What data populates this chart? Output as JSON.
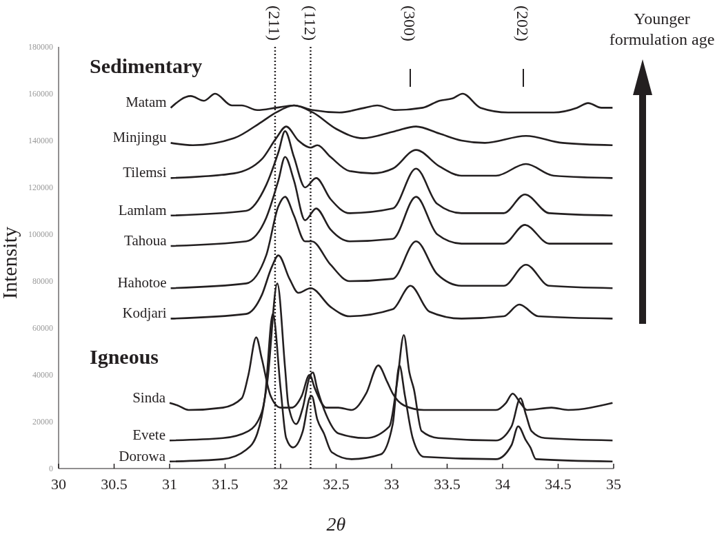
{
  "chart_data": {
    "type": "line",
    "xlabel": "2θ",
    "ylabel": "Intensity",
    "xlim": [
      30,
      35
    ],
    "xticks": [
      30,
      30.5,
      31,
      31.5,
      32,
      32.5,
      33,
      33.5,
      34,
      34.5,
      35
    ],
    "ylim": [
      0,
      180000
    ],
    "yticks": [
      0,
      20000,
      40000,
      60000,
      80000,
      100000,
      120000,
      140000,
      160000,
      180000
    ],
    "grid": false,
    "legend": false,
    "marker": "none",
    "line_style": "solid",
    "ref_lines": [
      {
        "axis": "x",
        "value": 31.95,
        "line_style": "dotted",
        "color": "#231f20"
      },
      {
        "axis": "x",
        "value": 32.27,
        "line_style": "dotted",
        "color": "#231f20"
      }
    ],
    "annotations": [
      "Sedimentary",
      "Igneous",
      "Younger formulation age",
      "(211)",
      "(112)",
      "(300)",
      "(202)"
    ],
    "series": [
      {
        "name": "Matam",
        "color": "#231f20",
        "x": [
          31.01,
          31.19,
          31.31,
          31.41,
          31.56,
          31.65,
          31.79,
          31.96,
          32.12,
          32.29,
          32.53,
          32.76,
          32.87,
          33.03,
          33.28,
          33.43,
          33.55,
          33.64,
          33.8,
          34.05,
          34.46,
          34.67,
          34.77,
          34.89,
          34.99
        ],
        "values": [
          154000,
          159000,
          157000,
          160000,
          155000,
          155000,
          153000,
          154000,
          155000,
          153000,
          152000,
          154000,
          155000,
          153000,
          154000,
          157000,
          158000,
          160000,
          154000,
          152000,
          152000,
          154000,
          156000,
          154000,
          154000
        ]
      },
      {
        "name": "Minjingu",
        "color": "#231f20",
        "x": [
          31.01,
          31.21,
          31.58,
          31.83,
          31.96,
          32.12,
          32.29,
          32.5,
          32.74,
          33.03,
          33.22,
          33.43,
          33.63,
          33.84,
          34.21,
          34.54,
          34.99
        ],
        "values": [
          139000,
          138000,
          141000,
          148000,
          152000,
          155000,
          152000,
          145000,
          141000,
          144000,
          146000,
          143000,
          140000,
          139000,
          142000,
          139000,
          138000
        ]
      },
      {
        "name": "Tilemsi",
        "color": "#231f20",
        "x": [
          31.01,
          31.58,
          31.83,
          31.96,
          32.05,
          32.16,
          32.27,
          32.33,
          32.45,
          32.62,
          32.83,
          33.01,
          33.22,
          33.43,
          33.63,
          33.94,
          34.21,
          34.46,
          34.99
        ],
        "values": [
          124000,
          126000,
          132000,
          141000,
          146000,
          140000,
          137000,
          138000,
          133000,
          127000,
          126000,
          128000,
          136000,
          129000,
          125000,
          125000,
          130000,
          125000,
          124000
        ]
      },
      {
        "name": "Lamlam",
        "color": "#231f20",
        "x": [
          31.01,
          31.69,
          31.87,
          31.98,
          32.04,
          32.12,
          32.22,
          32.32,
          32.45,
          32.62,
          33.01,
          33.22,
          33.41,
          33.63,
          34.01,
          34.2,
          34.42,
          34.99
        ],
        "values": [
          108000,
          110000,
          121000,
          135000,
          144000,
          133000,
          120000,
          124000,
          115000,
          109000,
          111000,
          128000,
          113000,
          109000,
          109000,
          117000,
          109000,
          108000
        ]
      },
      {
        "name": "Tahoua",
        "color": "#231f20",
        "x": [
          31.01,
          31.69,
          31.87,
          31.98,
          32.04,
          32.12,
          32.22,
          32.32,
          32.45,
          32.62,
          33.01,
          33.22,
          33.41,
          33.63,
          34.01,
          34.2,
          34.42,
          34.99
        ],
        "values": [
          95000,
          97000,
          107000,
          123000,
          133000,
          123000,
          106000,
          111000,
          102000,
          97000,
          98000,
          116000,
          100000,
          96000,
          96000,
          104000,
          96000,
          96000
        ]
      },
      {
        "name": "Hahotoe",
        "color": "#231f20",
        "x": [
          31.01,
          31.69,
          31.87,
          31.98,
          32.04,
          32.12,
          32.22,
          32.28,
          32.45,
          32.62,
          33.01,
          33.22,
          33.41,
          33.63,
          34.01,
          34.21,
          34.42,
          34.99
        ],
        "values": [
          77000,
          79000,
          91000,
          112000,
          116000,
          108000,
          97000,
          97000,
          87000,
          80000,
          81000,
          97000,
          83000,
          78000,
          78000,
          87000,
          78000,
          77000
        ]
      },
      {
        "name": "Kodjari",
        "color": "#231f20",
        "x": [
          31.01,
          31.69,
          31.83,
          31.92,
          31.98,
          32.08,
          32.16,
          32.27,
          32.45,
          32.62,
          33.01,
          33.17,
          33.34,
          33.63,
          34.01,
          34.15,
          34.32,
          34.99
        ],
        "values": [
          64000,
          66000,
          74000,
          86000,
          91000,
          81000,
          75000,
          77000,
          69000,
          65000,
          68000,
          78000,
          67000,
          64000,
          65000,
          70000,
          65000,
          64000
        ]
      },
      {
        "name": "Sinda",
        "color": "#231f20",
        "x": [
          31.0,
          31.07,
          31.17,
          31.48,
          31.65,
          31.71,
          31.78,
          31.83,
          31.91,
          32.0,
          32.1,
          32.19,
          32.26,
          32.31,
          32.41,
          32.52,
          32.64,
          32.77,
          32.88,
          32.96,
          33.01,
          33.11,
          33.29,
          33.94,
          34.03,
          34.09,
          34.16,
          34.22,
          34.44,
          34.59,
          34.99
        ],
        "values": [
          28000,
          27000,
          25000,
          26000,
          30000,
          40000,
          56000,
          47000,
          31000,
          26000,
          26000,
          31000,
          40000,
          34000,
          26000,
          26000,
          25000,
          32000,
          44000,
          37000,
          32000,
          27000,
          25000,
          25000,
          28000,
          32000,
          28000,
          25000,
          26000,
          25000,
          28000
        ]
      },
      {
        "name": "Evete",
        "color": "#231f20",
        "x": [
          31.0,
          31.48,
          31.71,
          31.83,
          31.88,
          31.97,
          32.04,
          32.07,
          32.14,
          32.2,
          32.26,
          32.29,
          32.33,
          32.41,
          32.52,
          32.77,
          32.98,
          33.05,
          33.11,
          33.16,
          33.2,
          33.27,
          33.42,
          33.94,
          34.08,
          34.16,
          34.21,
          34.26,
          34.38,
          34.99
        ],
        "values": [
          12000,
          13000,
          16000,
          24000,
          37000,
          79000,
          43000,
          27000,
          19000,
          26000,
          39000,
          41000,
          34000,
          23000,
          15000,
          13000,
          18000,
          37000,
          57000,
          41000,
          34000,
          16000,
          13000,
          12000,
          18000,
          30000,
          23000,
          16000,
          13000,
          12000
        ]
      },
      {
        "name": "Dorowa",
        "color": "#231f20",
        "x": [
          31.0,
          31.48,
          31.69,
          31.79,
          31.86,
          31.93,
          32.0,
          32.05,
          32.11,
          32.2,
          32.26,
          32.28,
          32.33,
          32.39,
          32.46,
          32.64,
          32.9,
          33.01,
          33.07,
          33.12,
          33.19,
          33.29,
          33.94,
          34.08,
          34.14,
          34.21,
          34.25,
          34.3,
          34.99
        ],
        "values": [
          3000,
          4000,
          8000,
          15000,
          31000,
          66000,
          34000,
          13000,
          9000,
          16000,
          30000,
          31000,
          21000,
          15000,
          7000,
          4000,
          6000,
          19000,
          44000,
          31000,
          13000,
          5000,
          4000,
          10000,
          18000,
          12000,
          9000,
          4000,
          3000
        ]
      }
    ]
  }
}
